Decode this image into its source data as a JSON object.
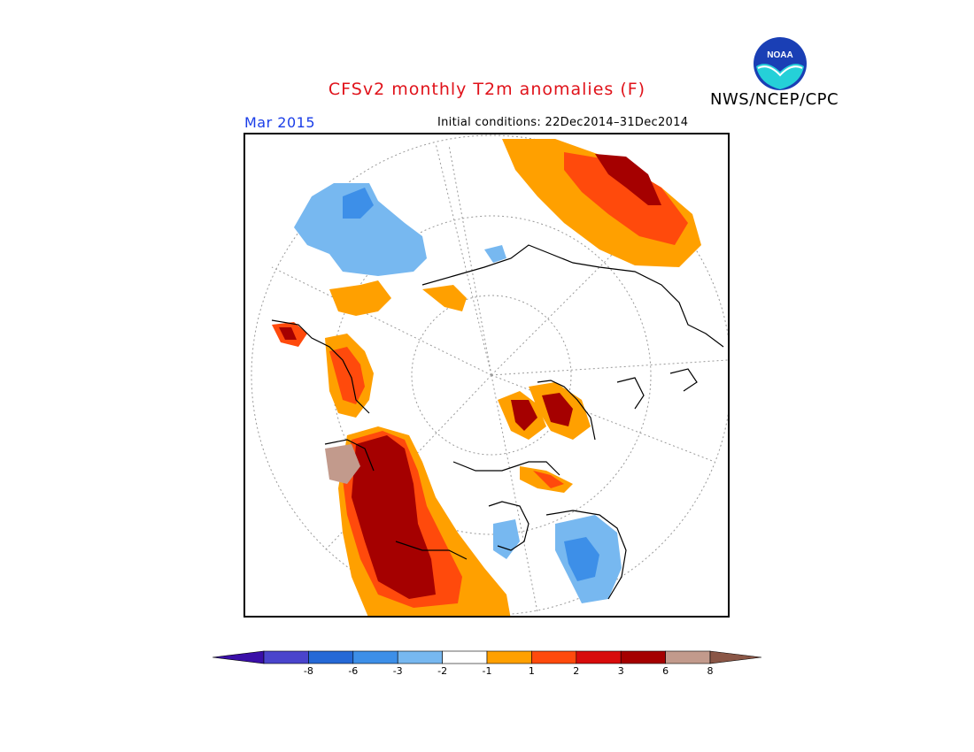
{
  "header": {
    "title": "CFSv2 monthly T2m anomalies (F)",
    "agency": "NWS/NCEP/CPC",
    "logo_text": "NOAA",
    "month": "Mar 2015",
    "initial_conditions": "Initial conditions: 22Dec2014–31Dec2014"
  },
  "legend": {
    "bins": [
      {
        "color": "#3a0fa8"
      },
      {
        "color": "#4a44cc"
      },
      {
        "color": "#2569d6"
      },
      {
        "color": "#3d8fe8"
      },
      {
        "color": "#77b8f0"
      },
      {
        "color": "#ffffff"
      },
      {
        "color": "#ffa000"
      },
      {
        "color": "#ff4a0c"
      },
      {
        "color": "#d80b0b"
      },
      {
        "color": "#a50000"
      },
      {
        "color": "#c29a8c"
      },
      {
        "color": "#8a5646"
      }
    ],
    "tick_labels": [
      "-8",
      "-6",
      "-3",
      "-2",
      "-1",
      "1",
      "2",
      "3",
      "6",
      "8"
    ]
  },
  "map": {
    "projection": "north-polar-stereographic",
    "regions": [
      {
        "name": "northeast-asia-warm",
        "category": "2 to 3"
      },
      {
        "name": "north-atlantic-cool",
        "category": "-2 to -1"
      },
      {
        "name": "western-europe-warm",
        "category": "1 to 3"
      },
      {
        "name": "eastern-north-america-warm",
        "category": "3 to 8"
      },
      {
        "name": "greenland-cool",
        "category": "-2 to -1"
      },
      {
        "name": "hudson-bay-cool",
        "category": "-1"
      }
    ]
  }
}
